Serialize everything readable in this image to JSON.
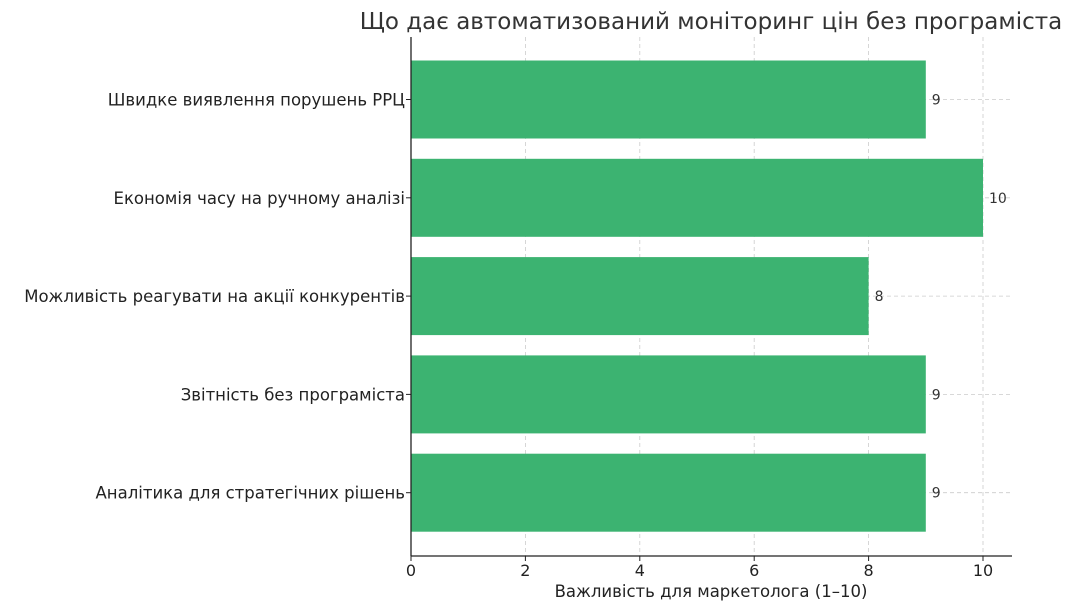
{
  "chart_data": {
    "type": "bar",
    "orientation": "horizontal",
    "title": "Що дає автоматизований моніторинг цін без програміста",
    "xlabel": "Важливість для маркетолога (1–10)",
    "ylabel": "",
    "categories": [
      "Швидке виявлення порушень РРЦ",
      "Економія часу на ручному аналізі",
      "Можливість реагувати на акції конкурентів",
      "Звітність без програміста",
      "Аналітика для стратегічних рішень"
    ],
    "values": [
      9,
      10,
      8,
      9,
      9
    ],
    "data_labels": [
      "9",
      "10",
      "8",
      "9",
      "9"
    ],
    "xlim": [
      0,
      10.5
    ],
    "xticks": [
      0,
      2,
      4,
      6,
      8,
      10
    ],
    "xtick_labels": [
      "0",
      "2",
      "4",
      "6",
      "8",
      "10"
    ],
    "grid": "dashed, both axes",
    "bar_color": "#3cb371",
    "legend": "none"
  }
}
